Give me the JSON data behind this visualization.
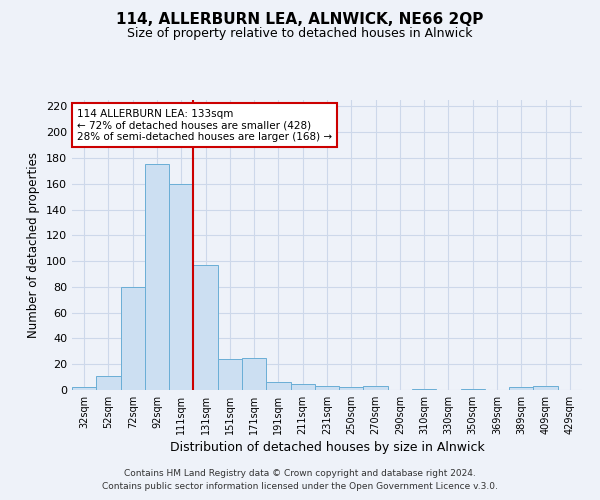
{
  "title": "114, ALLERBURN LEA, ALNWICK, NE66 2QP",
  "subtitle": "Size of property relative to detached houses in Alnwick",
  "xlabel": "Distribution of detached houses by size in Alnwick",
  "ylabel": "Number of detached properties",
  "footer_line1": "Contains HM Land Registry data © Crown copyright and database right 2024.",
  "footer_line2": "Contains public sector information licensed under the Open Government Licence v.3.0.",
  "bar_labels": [
    "32sqm",
    "52sqm",
    "72sqm",
    "92sqm",
    "111sqm",
    "131sqm",
    "151sqm",
    "171sqm",
    "191sqm",
    "211sqm",
    "231sqm",
    "250sqm",
    "270sqm",
    "290sqm",
    "310sqm",
    "330sqm",
    "350sqm",
    "369sqm",
    "389sqm",
    "409sqm",
    "429sqm"
  ],
  "bar_values": [
    2,
    11,
    80,
    175,
    160,
    97,
    24,
    25,
    6,
    5,
    3,
    2,
    3,
    0,
    1,
    0,
    1,
    0,
    2,
    3,
    0
  ],
  "bar_color": "#ccdff2",
  "bar_edge_color": "#6aaed6",
  "vline_x": 4.5,
  "vline_color": "#cc0000",
  "ylim": [
    0,
    225
  ],
  "yticks": [
    0,
    20,
    40,
    60,
    80,
    100,
    120,
    140,
    160,
    180,
    200,
    220
  ],
  "annotation_line1": "114 ALLERBURN LEA: 133sqm",
  "annotation_line2": "← 72% of detached houses are smaller (428)",
  "annotation_line3": "28% of semi-detached houses are larger (168) →",
  "annotation_box_edgecolor": "#cc0000",
  "grid_color": "#cdd8ea",
  "bg_color": "#eef2f9"
}
